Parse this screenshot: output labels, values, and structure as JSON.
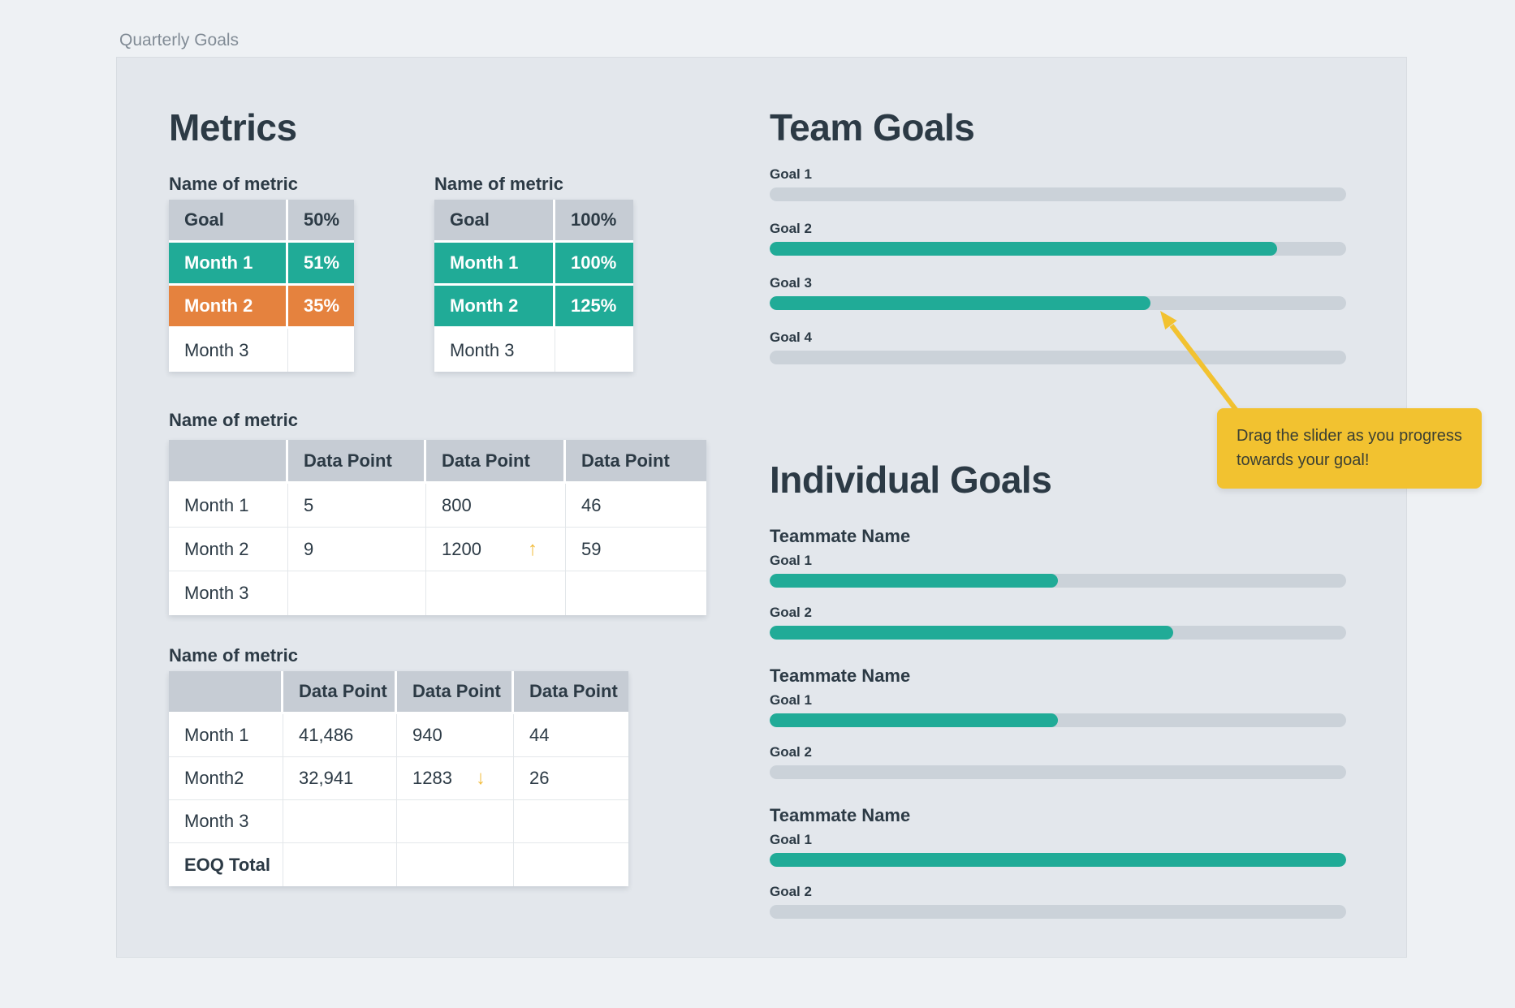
{
  "board_title": "Quarterly Goals",
  "colors": {
    "teal": "#20AB97",
    "orange": "#E5823E",
    "yellow": "#F2C230",
    "header_gray": "#C6CCD4",
    "track_gray": "#CBD2D9",
    "panel_bg": "#E3E7EC",
    "page_bg": "#EEF1F4",
    "text_dark": "#2C3A45"
  },
  "icons": {
    "trend_up": "↑",
    "trend_down": "↓"
  },
  "metrics": {
    "heading": "Metrics",
    "tables": [
      {
        "label": "Name of metric",
        "header": {
          "c0": "Goal",
          "c1": "50%"
        },
        "rows": [
          {
            "c0": "Month 1",
            "c1": "51%"
          },
          {
            "c0": "Month 2",
            "c1": "35%"
          },
          {
            "c0": "Month 3",
            "c1": ""
          }
        ]
      },
      {
        "label": "Name of metric",
        "header": {
          "c0": "Goal",
          "c1": "100%"
        },
        "rows": [
          {
            "c0": "Month 1",
            "c1": "100%"
          },
          {
            "c0": "Month 2",
            "c1": "125%"
          },
          {
            "c0": "Month 3",
            "c1": ""
          }
        ]
      },
      {
        "label": "Name of metric",
        "header": {
          "c0": "",
          "c1": "Data Point",
          "c2": "Data Point",
          "c3": "Data Point"
        },
        "rows": [
          {
            "c0": "Month 1",
            "c1": "5",
            "c2": "800",
            "c3": "46"
          },
          {
            "c0": "Month 2",
            "c1": "9",
            "c2": "1200",
            "c3": "59",
            "trend_col2": "up"
          },
          {
            "c0": "Month 3",
            "c1": "",
            "c2": "",
            "c3": ""
          }
        ]
      },
      {
        "label": "Name of metric",
        "header": {
          "c0": "",
          "c1": "Data Point",
          "c2": "Data Point",
          "c3": "Data Point"
        },
        "rows": [
          {
            "c0": "Month 1",
            "c1": "41,486",
            "c2": "940",
            "c3": "44"
          },
          {
            "c0": "Month2",
            "c1": "32,941",
            "c2": "1283",
            "c3": "26",
            "trend_col2": "down"
          },
          {
            "c0": "Month 3",
            "c1": "",
            "c2": "",
            "c3": ""
          },
          {
            "c0": "EOQ Total",
            "c1": "",
            "c2": "",
            "c3": ""
          }
        ]
      }
    ]
  },
  "team": {
    "heading": "Team Goals",
    "goals": [
      {
        "label": "Goal 1",
        "percent": 0
      },
      {
        "label": "Goal 2",
        "percent": 88
      },
      {
        "label": "Goal 3",
        "percent": 66
      },
      {
        "label": "Goal 4",
        "percent": 0
      }
    ]
  },
  "individual": {
    "heading": "Individual Goals",
    "teammates": [
      {
        "name": "Teammate Name",
        "goals": [
          {
            "label": "Goal 1",
            "percent": 50
          },
          {
            "label": "Goal 2",
            "percent": 70
          }
        ]
      },
      {
        "name": "Teammate Name",
        "goals": [
          {
            "label": "Goal 1",
            "percent": 50
          },
          {
            "label": "Goal 2",
            "percent": 0
          }
        ]
      },
      {
        "name": "Teammate Name",
        "goals": [
          {
            "label": "Goal 1",
            "percent": 100
          },
          {
            "label": "Goal 2",
            "percent": 0
          }
        ]
      }
    ]
  },
  "tooltip": {
    "text": "Drag the slider as you progress towards your goal!"
  }
}
